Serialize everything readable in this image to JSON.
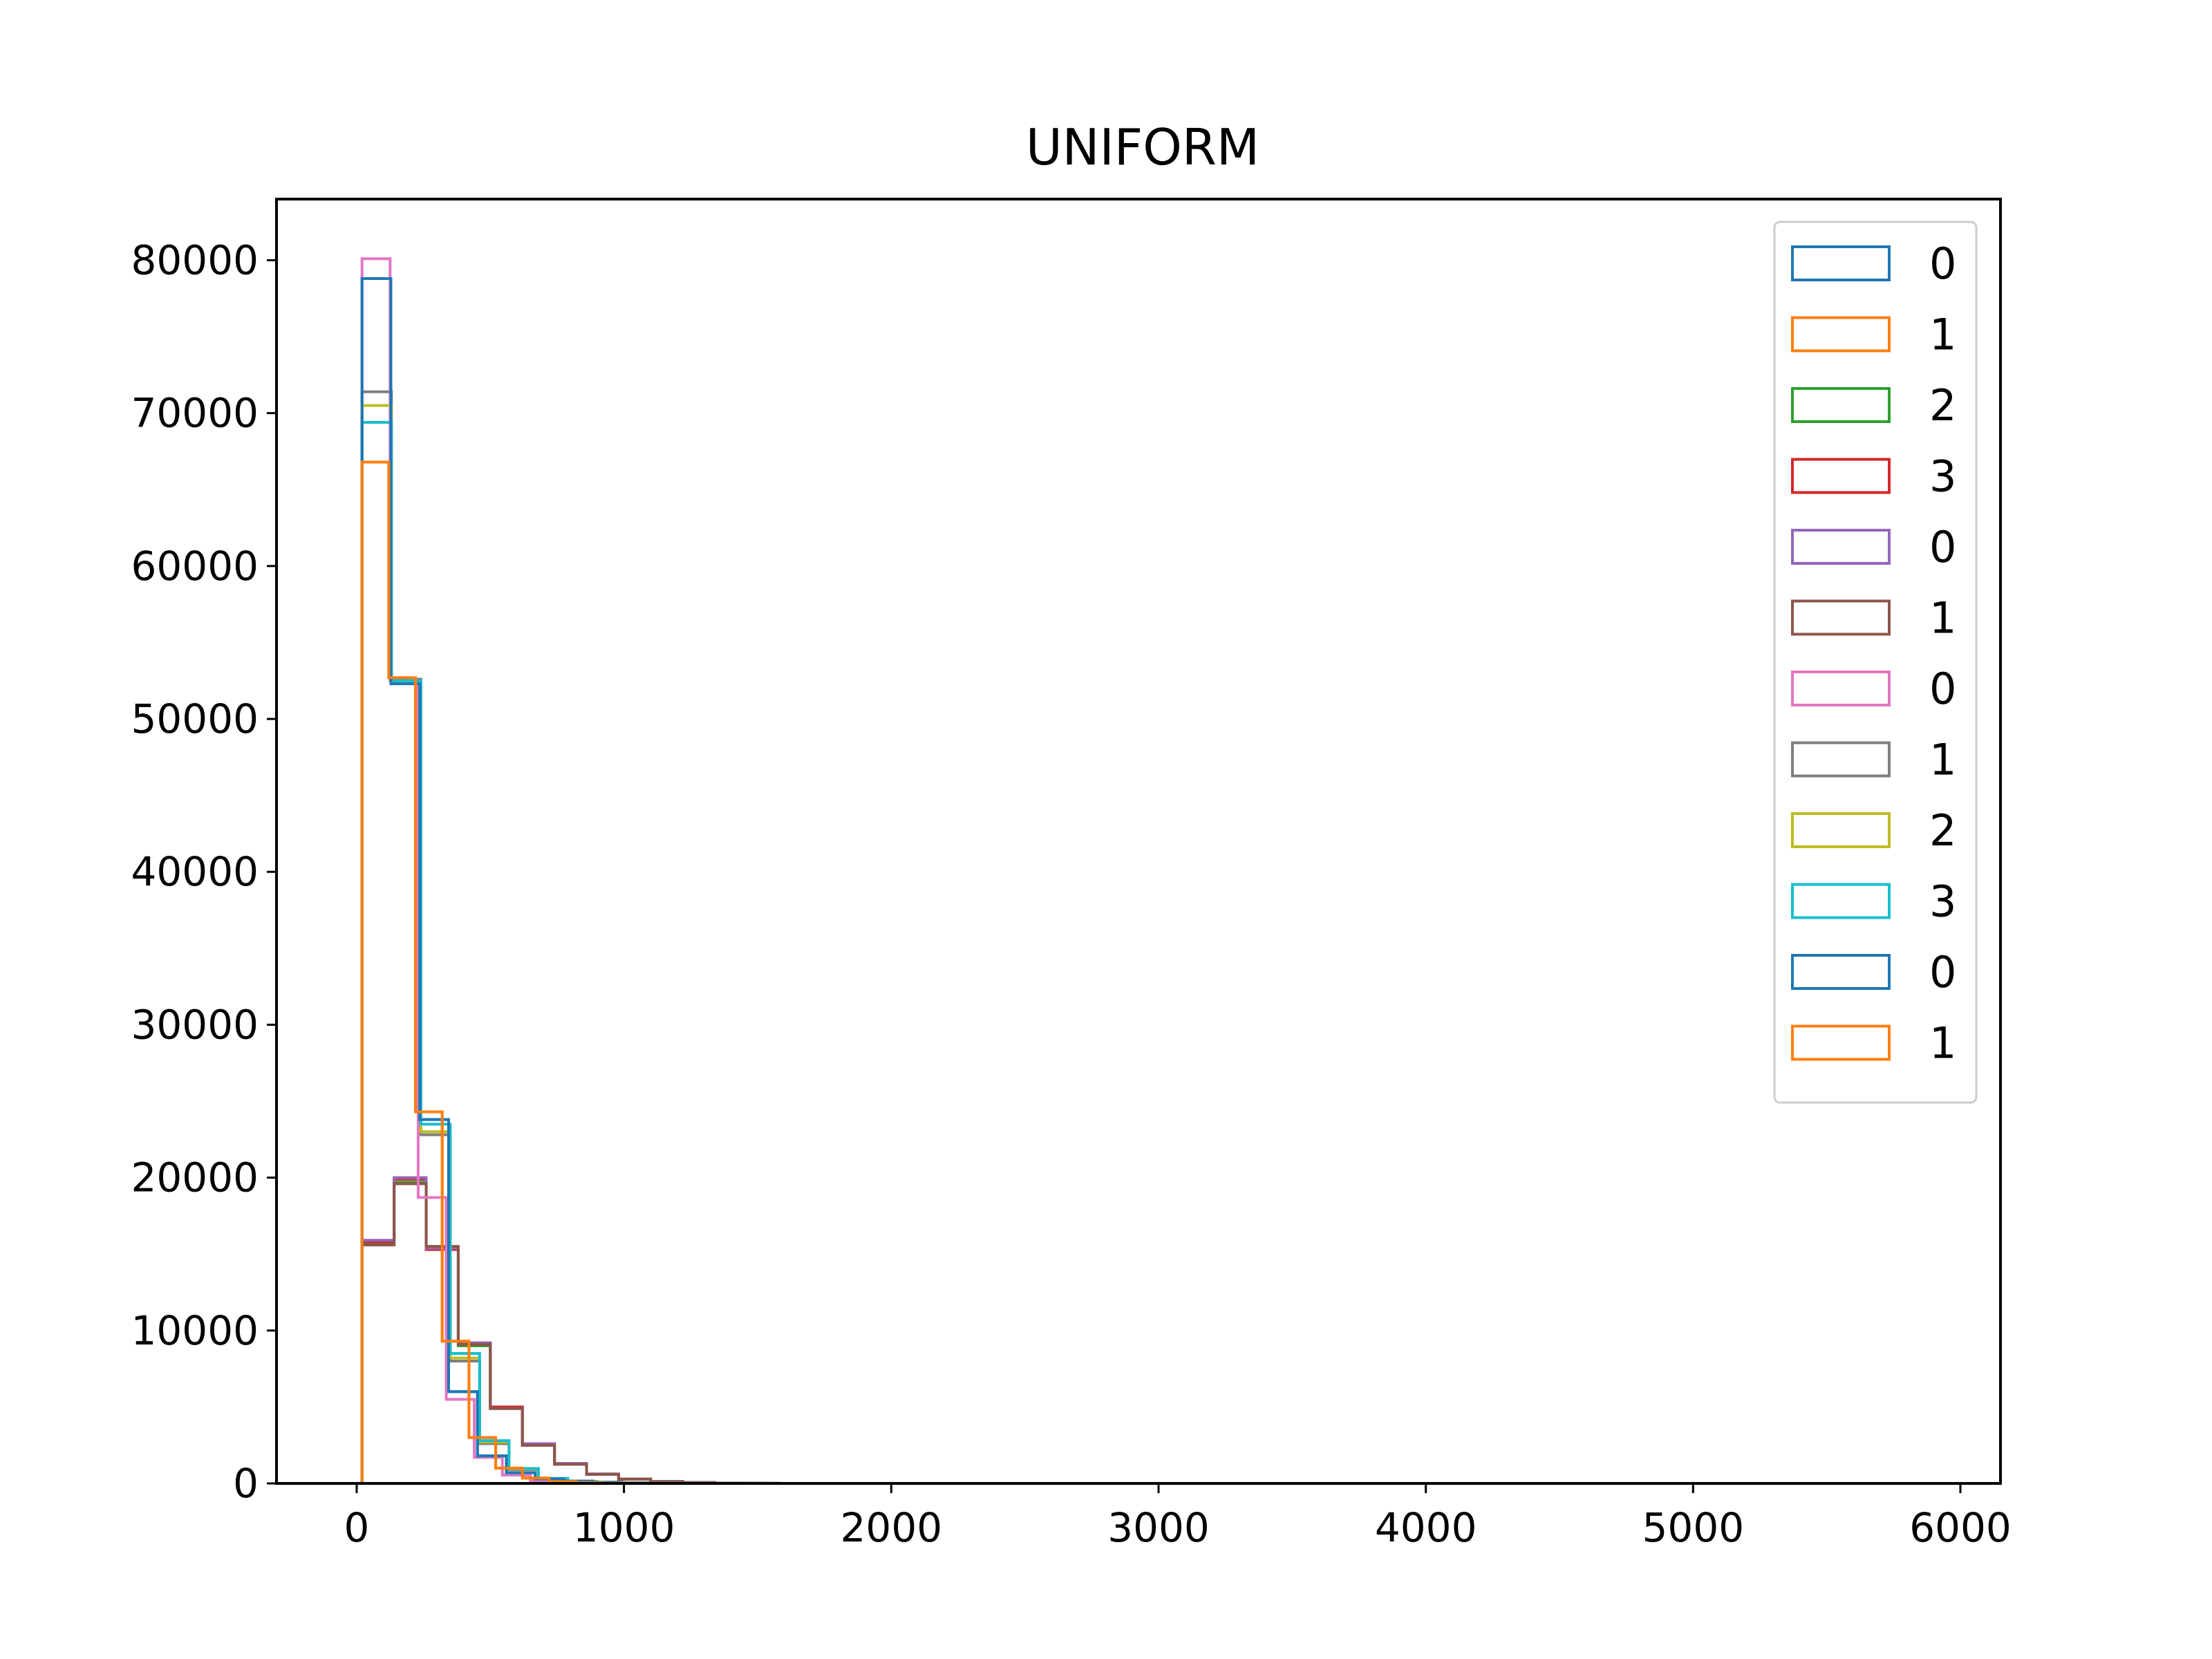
{
  "chart_data": {
    "type": "histogram",
    "title": "UNIFORM",
    "xlabel": "",
    "ylabel": "",
    "xlim": [
      -300,
      6150
    ],
    "ylim": [
      0,
      84000
    ],
    "xticks": [
      0,
      1000,
      2000,
      3000,
      4000,
      5000,
      6000
    ],
    "xtick_labels": [
      "0",
      "1000",
      "2000",
      "3000",
      "4000",
      "5000",
      "6000"
    ],
    "yticks": [
      0,
      10000,
      20000,
      30000,
      40000,
      50000,
      60000,
      70000,
      80000
    ],
    "ytick_labels": [
      "0",
      "10000",
      "20000",
      "30000",
      "40000",
      "50000",
      "60000",
      "70000",
      "80000"
    ],
    "grid": false,
    "legend_position": "upper right",
    "histtype": "step",
    "series": [
      {
        "name": "0",
        "color": "#1f77b4",
        "bin_edges": [
          20,
          128,
          236,
          344,
          452,
          560,
          668,
          776,
          884,
          992,
          1100,
          1208,
          1316,
          1424,
          1532,
          1640,
          2530
        ],
        "counts": [
          78800,
          52300,
          23800,
          6000,
          1800,
          700,
          300,
          150,
          80,
          40,
          20,
          10,
          5,
          3,
          2,
          0
        ]
      },
      {
        "name": "1",
        "color": "#ff7f0e",
        "bin_edges": [
          20,
          120,
          220,
          320,
          420,
          520,
          620,
          720,
          820,
          920,
          1020,
          1120,
          1220,
          2300
        ],
        "counts": [
          66800,
          52700,
          24300,
          9300,
          3000,
          1000,
          350,
          120,
          50,
          20,
          10,
          5,
          0
        ]
      },
      {
        "name": "2",
        "color": "#2ca02c",
        "bin_edges": [
          20,
          140,
          260,
          380,
          500,
          620,
          740,
          860,
          980,
          1100,
          1220,
          1340,
          1460,
          1580
        ],
        "counts": [
          15700,
          19700,
          15400,
          9000,
          4900,
          2600,
          1300,
          600,
          280,
          120,
          60,
          20,
          8
        ]
      },
      {
        "name": "3",
        "color": "#d62728",
        "bin_edges": [
          20,
          140,
          260,
          380,
          500,
          620,
          740,
          860,
          980,
          1100,
          1220,
          1340,
          1460,
          1580
        ],
        "counts": [
          15800,
          19900,
          15300,
          9100,
          5000,
          2500,
          1300,
          600,
          280,
          120,
          60,
          20,
          8
        ]
      },
      {
        "name": "0",
        "color": "#9467bd",
        "bin_edges": [
          20,
          140,
          260,
          380,
          500,
          620,
          740,
          860,
          980,
          1100,
          1220,
          1340,
          1460,
          1580
        ],
        "counts": [
          15900,
          20000,
          15400,
          9200,
          4900,
          2600,
          1300,
          620,
          290,
          130,
          60,
          20,
          8
        ]
      },
      {
        "name": "1",
        "color": "#8c564b",
        "bin_edges": [
          20,
          140,
          260,
          380,
          500,
          620,
          740,
          860,
          980,
          1100,
          1220,
          1340,
          1460,
          1580
        ],
        "counts": [
          15600,
          19600,
          15500,
          9100,
          4900,
          2500,
          1250,
          600,
          280,
          120,
          55,
          20,
          8
        ]
      },
      {
        "name": "0",
        "color": "#e377c2",
        "bin_edges": [
          20,
          125,
          230,
          335,
          440,
          545,
          650,
          755,
          860,
          965,
          1070,
          1175,
          2000
        ],
        "counts": [
          80100,
          52500,
          18700,
          5500,
          1700,
          550,
          180,
          70,
          30,
          12,
          5,
          0
        ]
      },
      {
        "name": "1",
        "color": "#7f7f7f",
        "bin_edges": [
          20,
          130,
          240,
          350,
          460,
          570,
          680,
          790,
          900,
          1010,
          1120,
          1230,
          2100
        ],
        "counts": [
          71400,
          52600,
          22800,
          8000,
          2600,
          900,
          300,
          110,
          45,
          18,
          7,
          0
        ]
      },
      {
        "name": "2",
        "color": "#bcbd22",
        "bin_edges": [
          20,
          130,
          240,
          350,
          460,
          570,
          680,
          790,
          900,
          1010,
          1120,
          1230,
          2100
        ],
        "counts": [
          70500,
          52400,
          23000,
          8200,
          2700,
          950,
          320,
          120,
          50,
          20,
          8,
          0
        ]
      },
      {
        "name": "3",
        "color": "#17becf",
        "bin_edges": [
          20,
          130,
          240,
          350,
          460,
          570,
          680,
          790,
          900,
          1010,
          1120,
          1230,
          2100
        ],
        "counts": [
          69400,
          52500,
          23500,
          8500,
          2800,
          980,
          330,
          120,
          50,
          20,
          8,
          0
        ]
      },
      {
        "name": "0",
        "color": "#1f77b4",
        "bin_edges": [
          20,
          128,
          236,
          344,
          452,
          560,
          668,
          776,
          884,
          992,
          1100,
          1208,
          1316,
          1424,
          1532,
          1640,
          2530
        ],
        "counts": [
          78800,
          52300,
          23800,
          6000,
          1800,
          700,
          300,
          150,
          80,
          40,
          20,
          10,
          5,
          3,
          2,
          0
        ]
      },
      {
        "name": "1",
        "color": "#ff7f0e",
        "bin_edges": [
          20,
          120,
          220,
          320,
          420,
          520,
          620,
          720,
          820,
          920,
          1020,
          1120,
          1220,
          2300
        ],
        "counts": [
          66800,
          52700,
          24300,
          9300,
          3000,
          1000,
          350,
          120,
          50,
          20,
          10,
          5,
          0
        ]
      }
    ]
  }
}
